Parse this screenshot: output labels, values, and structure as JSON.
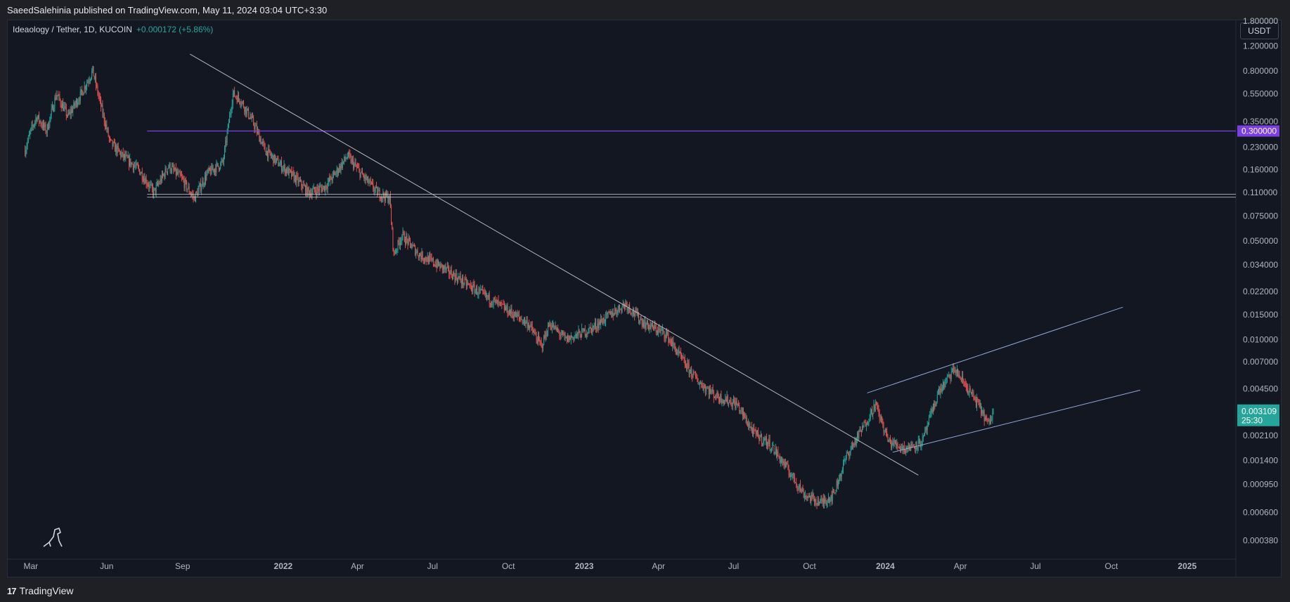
{
  "header": {
    "published_by": "SaeedSalehinia published on TradingView.com, May 11, 2024 03:04 UTC+3:30"
  },
  "legend": {
    "symbol": "Ideaology / Tether, 1D, KUCOIN",
    "change": "+0.000172 (+5.86%)"
  },
  "footer": {
    "brand": "TradingView",
    "mark": "17"
  },
  "currency_button": "USDT",
  "colors": {
    "background": "#131722",
    "up": "#26a69a",
    "down": "#ef5350",
    "resistance_line": "#7b3fe4",
    "trendline": "#b2b5be",
    "channel": "#8fa9d6",
    "last_price_badge": "#26a69a"
  },
  "chart_data": {
    "type": "candlestick",
    "yscale": "log",
    "ylim": [
      0.0003,
      1.8
    ],
    "xlim": [
      "2021-02-01",
      "2025-03-01"
    ],
    "y_ticks": [
      "1.800000",
      "1.200000",
      "0.800000",
      "0.550000",
      "0.350000",
      "0.230000",
      "0.160000",
      "0.110000",
      "0.075000",
      "0.050000",
      "0.034000",
      "0.022000",
      "0.015000",
      "0.010000",
      "0.007000",
      "0.004500",
      "0.002100",
      "0.001400",
      "0.000950",
      "0.000600",
      "0.000380"
    ],
    "x_ticks": [
      {
        "label": "Mar",
        "date": "2021-03-01",
        "bold": false
      },
      {
        "label": "Jun",
        "date": "2021-06-01",
        "bold": false
      },
      {
        "label": "Sep",
        "date": "2021-09-01",
        "bold": false
      },
      {
        "label": "2022",
        "date": "2022-01-01",
        "bold": true
      },
      {
        "label": "Apr",
        "date": "2022-04-01",
        "bold": false
      },
      {
        "label": "Jul",
        "date": "2022-07-01",
        "bold": false
      },
      {
        "label": "Oct",
        "date": "2022-10-01",
        "bold": false
      },
      {
        "label": "2023",
        "date": "2023-01-01",
        "bold": true
      },
      {
        "label": "Apr",
        "date": "2023-04-01",
        "bold": false
      },
      {
        "label": "Jul",
        "date": "2023-07-01",
        "bold": false
      },
      {
        "label": "Oct",
        "date": "2023-10-01",
        "bold": false
      },
      {
        "label": "2024",
        "date": "2024-01-01",
        "bold": true
      },
      {
        "label": "Apr",
        "date": "2024-04-01",
        "bold": false
      },
      {
        "label": "Jul",
        "date": "2024-07-01",
        "bold": false
      },
      {
        "label": "Oct",
        "date": "2024-10-01",
        "bold": false
      },
      {
        "label": "2025",
        "date": "2025-01-01",
        "bold": true
      }
    ],
    "price_path": [
      [
        "2021-02-22",
        0.22
      ],
      [
        "2021-03-01",
        0.3
      ],
      [
        "2021-03-08",
        0.38
      ],
      [
        "2021-03-20",
        0.3
      ],
      [
        "2021-04-01",
        0.55
      ],
      [
        "2021-04-15",
        0.38
      ],
      [
        "2021-05-01",
        0.55
      ],
      [
        "2021-05-15",
        0.8
      ],
      [
        "2021-05-25",
        0.45
      ],
      [
        "2021-06-05",
        0.25
      ],
      [
        "2021-06-20",
        0.2
      ],
      [
        "2021-07-10",
        0.16
      ],
      [
        "2021-07-28",
        0.11
      ],
      [
        "2021-08-15",
        0.17
      ],
      [
        "2021-08-30",
        0.14
      ],
      [
        "2021-09-15",
        0.1
      ],
      [
        "2021-10-01",
        0.15
      ],
      [
        "2021-10-20",
        0.18
      ],
      [
        "2021-11-01",
        0.55
      ],
      [
        "2021-11-10",
        0.5
      ],
      [
        "2021-11-25",
        0.35
      ],
      [
        "2021-12-10",
        0.22
      ],
      [
        "2021-12-25",
        0.18
      ],
      [
        "2022-01-15",
        0.14
      ],
      [
        "2022-02-01",
        0.11
      ],
      [
        "2022-02-20",
        0.12
      ],
      [
        "2022-03-05",
        0.15
      ],
      [
        "2022-03-20",
        0.2
      ],
      [
        "2022-04-05",
        0.15
      ],
      [
        "2022-04-25",
        0.11
      ],
      [
        "2022-05-10",
        0.1
      ],
      [
        "2022-05-15",
        0.04
      ],
      [
        "2022-05-25",
        0.055
      ],
      [
        "2022-06-15",
        0.04
      ],
      [
        "2022-07-15",
        0.032
      ],
      [
        "2022-08-10",
        0.025
      ],
      [
        "2022-09-05",
        0.02
      ],
      [
        "2022-10-01",
        0.016
      ],
      [
        "2022-10-25",
        0.013
      ],
      [
        "2022-11-10",
        0.009
      ],
      [
        "2022-11-20",
        0.013
      ],
      [
        "2022-12-10",
        0.01
      ],
      [
        "2023-01-10",
        0.012
      ],
      [
        "2023-02-01",
        0.015
      ],
      [
        "2023-02-20",
        0.018
      ],
      [
        "2023-03-15",
        0.013
      ],
      [
        "2023-04-10",
        0.011
      ],
      [
        "2023-05-01",
        0.007
      ],
      [
        "2023-05-20",
        0.005
      ],
      [
        "2023-06-10",
        0.004
      ],
      [
        "2023-07-05",
        0.0035
      ],
      [
        "2023-07-25",
        0.0022
      ],
      [
        "2023-08-15",
        0.0018
      ],
      [
        "2023-09-05",
        0.0012
      ],
      [
        "2023-09-25",
        0.0008
      ],
      [
        "2023-10-15",
        0.0007
      ],
      [
        "2023-10-30",
        0.0008
      ],
      [
        "2023-11-15",
        0.0015
      ],
      [
        "2023-12-05",
        0.0024
      ],
      [
        "2023-12-20",
        0.0035
      ],
      [
        "2024-01-05",
        0.0019
      ],
      [
        "2024-01-25",
        0.0017
      ],
      [
        "2024-02-15",
        0.0019
      ],
      [
        "2024-03-05",
        0.0042
      ],
      [
        "2024-03-25",
        0.0062
      ],
      [
        "2024-04-10",
        0.0045
      ],
      [
        "2024-04-25",
        0.0033
      ],
      [
        "2024-05-05",
        0.0025
      ],
      [
        "2024-05-11",
        0.0031
      ]
    ],
    "annotations": {
      "horizontal_lines": [
        {
          "price": 0.3,
          "from": "2021-07-20",
          "label": "0.300000"
        },
        {
          "price": 0.107,
          "from": "2021-07-20",
          "label": ""
        },
        {
          "price": 0.102,
          "from": "2021-07-20",
          "label": ""
        }
      ],
      "trendlines": [
        {
          "from": [
            "2021-09-10",
            1.05
          ],
          "to": [
            "2024-02-10",
            0.0011
          ],
          "role": "downtrend"
        },
        {
          "from": [
            "2023-12-10",
            0.0042
          ],
          "to": [
            "2024-10-15",
            0.017
          ],
          "role": "channel-upper"
        },
        {
          "from": [
            "2024-01-10",
            0.0016
          ],
          "to": [
            "2024-11-05",
            0.0044
          ],
          "role": "channel-lower"
        }
      ]
    },
    "last_price": {
      "value": "0.003109",
      "countdown": "25:30",
      "price": 0.003109
    }
  }
}
